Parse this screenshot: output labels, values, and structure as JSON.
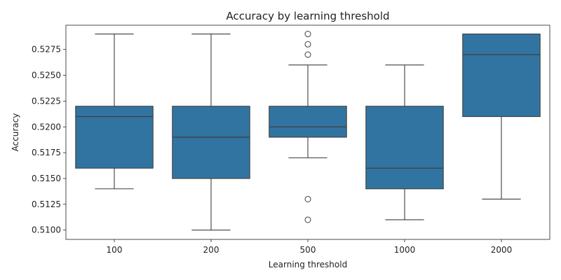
{
  "chart_data": {
    "type": "box",
    "title": "Accuracy by learning threshold",
    "xlabel": "Learning threshold",
    "ylabel": "Accuracy",
    "ylim": [
      0.5091,
      0.52985
    ],
    "yticks": [
      "0.5100",
      "0.5125",
      "0.5150",
      "0.5175",
      "0.5200",
      "0.5225",
      "0.5250",
      "0.5275"
    ],
    "categories": [
      "100",
      "200",
      "500",
      "1000",
      "2000"
    ],
    "boxes": [
      {
        "category": "100",
        "whisker_low": 0.514,
        "q1": 0.516,
        "median": 0.521,
        "q3": 0.522,
        "whisker_high": 0.529,
        "outliers": []
      },
      {
        "category": "200",
        "whisker_low": 0.51,
        "q1": 0.515,
        "median": 0.519,
        "q3": 0.522,
        "whisker_high": 0.529,
        "outliers": []
      },
      {
        "category": "500",
        "whisker_low": 0.517,
        "q1": 0.519,
        "median": 0.52,
        "q3": 0.522,
        "whisker_high": 0.526,
        "outliers": [
          0.527,
          0.528,
          0.529,
          0.513,
          0.511
        ]
      },
      {
        "category": "1000",
        "whisker_low": 0.511,
        "q1": 0.514,
        "median": 0.516,
        "q3": 0.522,
        "whisker_high": 0.526,
        "outliers": []
      },
      {
        "category": "2000",
        "whisker_low": 0.513,
        "q1": 0.521,
        "median": 0.527,
        "q3": 0.529,
        "whisker_high": 0.529,
        "outliers": []
      }
    ],
    "box_color": "#3274a1",
    "line_color": "#3f3f3f",
    "grid": false,
    "legend": "none"
  }
}
